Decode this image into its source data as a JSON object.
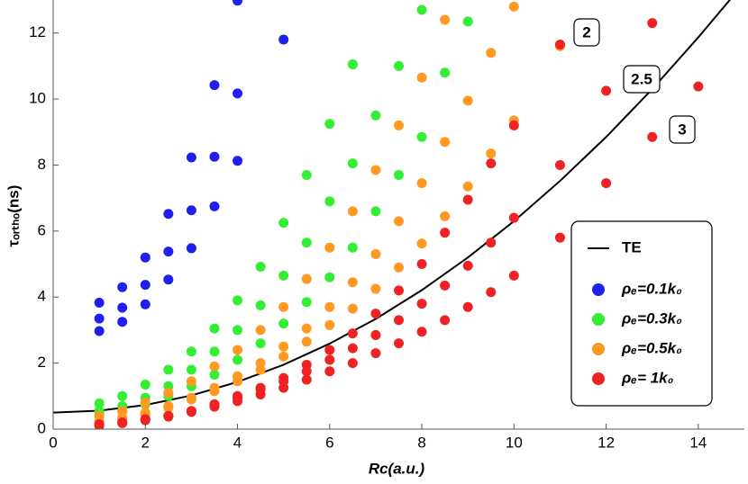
{
  "chart_data": {
    "type": "scatter",
    "xlabel": "Rc(a.u.)",
    "ylabel": "τₒᵣₜₕₒ(ns)",
    "xlim": [
      0,
      15
    ],
    "ylim": [
      0,
      13
    ],
    "xticks": [
      0,
      2,
      4,
      6,
      8,
      10,
      12,
      14
    ],
    "yticks": [
      0,
      2,
      4,
      6,
      8,
      10,
      12
    ],
    "grid": false,
    "legend": "lower right",
    "annotations": [
      "2",
      "2.5",
      "3"
    ],
    "series": [
      {
        "name": "TE",
        "kind": "line",
        "color": "#000000",
        "x": [
          0,
          1,
          2,
          3,
          4,
          5,
          6,
          7,
          8,
          9,
          10,
          11,
          12,
          13,
          14,
          14.7
        ],
        "values": [
          0.5,
          0.56,
          0.73,
          1.02,
          1.43,
          1.95,
          2.59,
          3.34,
          4.21,
          5.2,
          6.3,
          7.52,
          8.85,
          10.3,
          11.87,
          13.03
        ]
      },
      {
        "name": "ρₑ=0.1k₀",
        "kind": "points",
        "color": "#1f1fee",
        "x": [
          1,
          1,
          1,
          1.5,
          1.5,
          1.5,
          2,
          2,
          2,
          2.5,
          2.5,
          2.5,
          3,
          3,
          3,
          3.5,
          3.5,
          3.5,
          4,
          4,
          4,
          5
        ],
        "values": [
          2.97,
          3.35,
          3.83,
          3.25,
          3.68,
          4.3,
          3.78,
          4.37,
          5.2,
          4.53,
          5.38,
          6.52,
          5.48,
          6.63,
          8.23,
          6.75,
          8.25,
          10.42,
          8.13,
          10.17,
          12.98,
          11.8
        ]
      },
      {
        "name": "ρₑ=0.3k₀",
        "kind": "points",
        "color": "#33ee33",
        "x": [
          1,
          1.5,
          2,
          2.5,
          3,
          3.5,
          4,
          4.5,
          5,
          5.5,
          6,
          6.5,
          1,
          1.5,
          2,
          2.5,
          3,
          3.5,
          4,
          4.5,
          5,
          5.5,
          6,
          6.5,
          7,
          7.5,
          8,
          1,
          1.5,
          2,
          2.5,
          3,
          3.5,
          4,
          4.5,
          5,
          5.5,
          6,
          6.5,
          7,
          7.5,
          8,
          8.5,
          9
        ],
        "values": [
          0.78,
          1.0,
          1.35,
          1.8,
          2.35,
          3.05,
          3.9,
          4.92,
          6.25,
          7.7,
          9.25,
          11.05,
          0.55,
          0.7,
          0.95,
          1.3,
          1.8,
          2.35,
          3.0,
          3.75,
          4.65,
          5.65,
          6.9,
          8.05,
          9.5,
          11.0,
          12.7,
          0.45,
          0.55,
          0.75,
          1.0,
          1.3,
          1.65,
          2.1,
          2.6,
          3.2,
          3.85,
          4.6,
          5.5,
          6.6,
          7.7,
          8.85,
          10.8,
          12.35
        ]
      },
      {
        "name": "ρₑ=0.5k₀",
        "kind": "points",
        "color": "#ff9922",
        "x": [
          1,
          1.5,
          2,
          2.5,
          3,
          3.5,
          4,
          4.5,
          5,
          5.5,
          6,
          6.5,
          7,
          7.5,
          8,
          8.5,
          1,
          1.5,
          2,
          2.5,
          3,
          3.5,
          4,
          4.5,
          5,
          5.5,
          6,
          6.5,
          7,
          7.5,
          8,
          8.5,
          9,
          9.5,
          10,
          1,
          1.5,
          2,
          2.5,
          3,
          3.5,
          4,
          4.5,
          5,
          5.5,
          6,
          6.5,
          7,
          7.5,
          8,
          8.5,
          9,
          9.5,
          10,
          11
        ],
        "values": [
          0.4,
          0.55,
          0.8,
          1.1,
          1.45,
          1.9,
          2.4,
          3.0,
          3.7,
          4.55,
          5.5,
          6.6,
          7.85,
          9.2,
          10.65,
          12.4,
          0.25,
          0.35,
          0.5,
          0.7,
          0.95,
          1.25,
          1.6,
          2.0,
          2.5,
          3.05,
          3.7,
          4.45,
          5.3,
          6.3,
          7.45,
          8.7,
          9.95,
          11.4,
          12.8,
          0.2,
          0.3,
          0.45,
          0.65,
          0.9,
          1.15,
          1.45,
          1.8,
          2.2,
          2.65,
          3.15,
          3.65,
          4.25,
          4.9,
          5.62,
          6.45,
          7.35,
          8.35,
          9.35,
          11.6
        ]
      },
      {
        "name": "ρₑ= 1k₀",
        "kind": "points",
        "color": "#ee2222",
        "x": [
          1,
          1.5,
          2,
          2.5,
          3,
          3.5,
          4,
          4.5,
          5,
          5.5,
          6,
          6.5,
          7,
          7.5,
          8,
          8.5,
          9,
          9.5,
          10,
          1,
          1.5,
          2,
          2.5,
          3,
          3.5,
          4,
          4.5,
          5,
          5.5,
          6,
          6.5,
          7,
          7.5,
          8,
          8.5,
          9,
          9.5,
          10,
          1,
          1.5,
          2,
          2.5,
          3,
          3.5,
          4,
          4.5,
          5,
          5.5,
          6,
          6.5,
          7,
          7.5,
          8,
          8.5,
          9,
          9.5,
          10,
          11,
          11,
          11,
          12,
          12,
          13,
          13,
          14
        ],
        "values": [
          0.15,
          0.2,
          0.3,
          0.4,
          0.55,
          0.75,
          1.0,
          1.25,
          1.55,
          1.95,
          2.4,
          2.9,
          3.5,
          4.2,
          5.0,
          5.95,
          6.95,
          8.05,
          9.2,
          0.12,
          0.2,
          0.3,
          0.4,
          0.55,
          0.75,
          0.95,
          1.2,
          1.45,
          1.75,
          2.1,
          2.45,
          2.85,
          3.3,
          3.8,
          4.35,
          4.95,
          5.65,
          6.4,
          0.1,
          0.18,
          0.27,
          0.38,
          0.52,
          0.68,
          0.85,
          1.05,
          1.25,
          1.5,
          1.75,
          2.0,
          2.3,
          2.6,
          2.95,
          3.3,
          3.7,
          4.15,
          4.65,
          5.8,
          8.0,
          11.65,
          7.45,
          10.25,
          8.85,
          12.3,
          10.38
        ]
      }
    ]
  }
}
